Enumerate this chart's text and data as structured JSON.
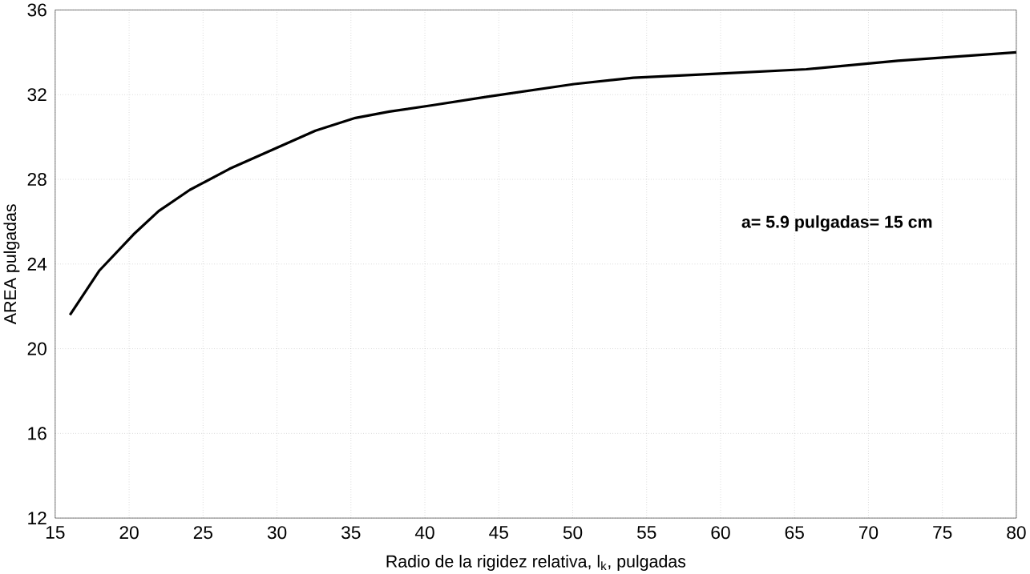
{
  "chart_data": {
    "type": "line",
    "xlabel": "Radio de la rigidez relativa, l$_{k}$, pulgadas",
    "ylabel": "AREA pulgadas",
    "annotations": [
      "a= 5.9 pulgadas= 15 cm"
    ],
    "x": [
      16.0,
      18.0,
      20.3,
      22.0,
      24.1,
      26.8,
      29.7,
      32.6,
      35.3,
      37.6,
      40.5,
      44.2,
      50.1,
      54.1,
      60.0,
      65.8,
      72.0,
      80.0
    ],
    "series": [
      {
        "color": "#000000",
        "values": [
          21.6,
          23.7,
          25.4,
          26.5,
          27.5,
          28.5,
          29.4,
          30.3,
          30.9,
          31.2,
          31.5,
          31.9,
          32.5,
          32.8,
          33.0,
          33.2,
          33.6,
          34.0
        ]
      }
    ],
    "xlim": [
      15,
      80
    ],
    "ylim": [
      12,
      36
    ],
    "xticks": [
      15,
      20,
      25,
      30,
      35,
      40,
      45,
      50,
      55,
      60,
      65,
      70,
      75,
      80
    ],
    "yticks": [
      12,
      16,
      20,
      24,
      28,
      32,
      36
    ],
    "grid": true,
    "marker": "none",
    "line_style": "solid"
  }
}
